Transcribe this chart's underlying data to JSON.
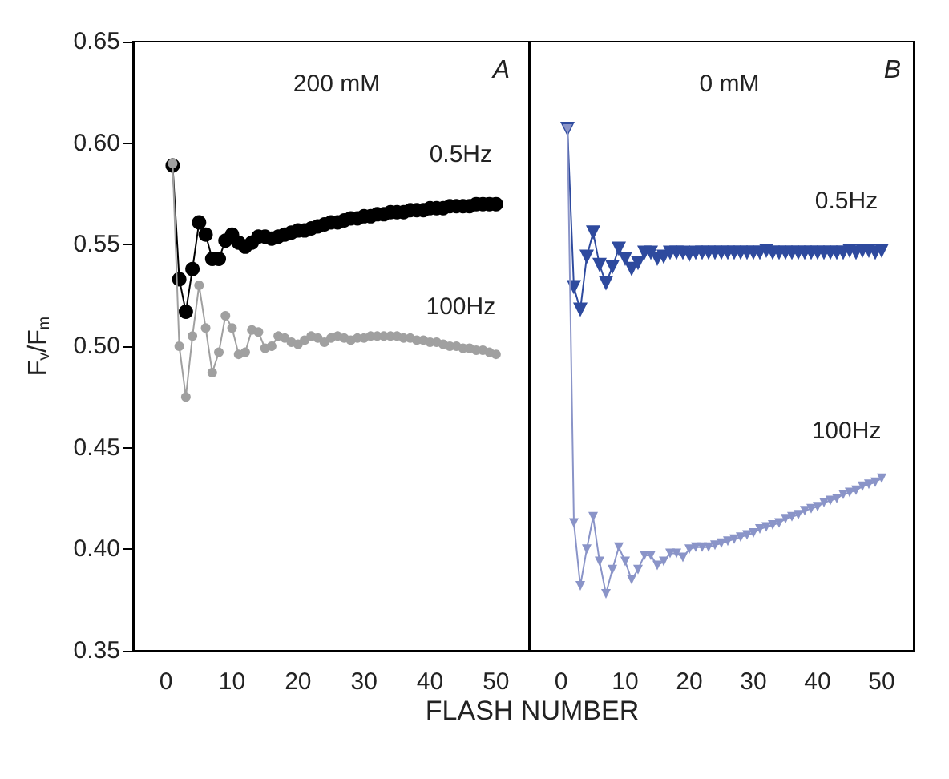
{
  "chart_data": [
    {
      "type": "line",
      "title": "200 mM",
      "annotations": [
        "A"
      ],
      "xlabel": "FLASH NUMBER",
      "ylabel": "F$_{v}$/F$_{m}$",
      "marker": "circle",
      "grid": false,
      "legend": false,
      "x": [
        1,
        2,
        3,
        4,
        5,
        6,
        7,
        8,
        9,
        10,
        11,
        12,
        13,
        14,
        15,
        16,
        17,
        18,
        19,
        20,
        21,
        22,
        23,
        24,
        25,
        26,
        27,
        28,
        29,
        30,
        31,
        32,
        33,
        34,
        35,
        36,
        37,
        38,
        39,
        40,
        41,
        42,
        43,
        44,
        45,
        46,
        47,
        48,
        49,
        50
      ],
      "xlim": [
        -5,
        55
      ],
      "xticks": [
        0,
        10,
        20,
        30,
        40,
        50
      ],
      "ylim": [
        0.35,
        0.65
      ],
      "yticks": [
        0.35,
        {
          "value": 0.4,
          "label": "0.40"
        },
        0.45,
        {
          "value": 0.5,
          "label": "0.50"
        },
        0.55,
        {
          "value": 0.6,
          "label": "0.60"
        },
        0.65
      ],
      "series": [
        {
          "name": "0.5Hz",
          "color": "#000000",
          "values": [
            0.589,
            0.533,
            0.517,
            0.538,
            0.561,
            0.555,
            0.543,
            0.543,
            0.552,
            0.555,
            0.551,
            0.549,
            0.551,
            0.554,
            0.554,
            0.553,
            0.554,
            0.555,
            0.556,
            0.557,
            0.557,
            0.558,
            0.559,
            0.56,
            0.561,
            0.561,
            0.562,
            0.563,
            0.563,
            0.564,
            0.564,
            0.565,
            0.565,
            0.566,
            0.566,
            0.566,
            0.567,
            0.567,
            0.567,
            0.568,
            0.568,
            0.568,
            0.569,
            0.569,
            0.569,
            0.569,
            0.57,
            0.57,
            0.57,
            0.57
          ]
        },
        {
          "name": "100Hz",
          "color": "#a0a0a0",
          "values": [
            0.59,
            0.5,
            0.475,
            0.505,
            0.53,
            0.509,
            0.487,
            0.497,
            0.515,
            0.509,
            0.496,
            0.497,
            0.508,
            0.507,
            0.499,
            0.5,
            0.505,
            0.504,
            0.502,
            0.501,
            0.503,
            0.505,
            0.504,
            0.502,
            0.504,
            0.505,
            0.504,
            0.503,
            0.504,
            0.504,
            0.505,
            0.505,
            0.505,
            0.505,
            0.505,
            0.504,
            0.504,
            0.503,
            0.503,
            0.502,
            0.502,
            0.501,
            0.5,
            0.5,
            0.499,
            0.499,
            0.498,
            0.498,
            0.497,
            0.496
          ]
        }
      ]
    },
    {
      "type": "line",
      "title": "0 mM",
      "annotations": [
        "B"
      ],
      "marker": "triangle",
      "grid": false,
      "legend": false,
      "tick_labels": "x",
      "x": [
        1,
        2,
        3,
        4,
        5,
        6,
        7,
        8,
        9,
        10,
        11,
        12,
        13,
        14,
        15,
        16,
        17,
        18,
        19,
        20,
        21,
        22,
        23,
        24,
        25,
        26,
        27,
        28,
        29,
        30,
        31,
        32,
        33,
        34,
        35,
        36,
        37,
        38,
        39,
        40,
        41,
        42,
        43,
        44,
        45,
        46,
        47,
        48,
        49,
        50
      ],
      "xlim": [
        -5,
        55
      ],
      "xticks": [
        0,
        10,
        20,
        30,
        40,
        50
      ],
      "ylim": [
        0.35,
        0.65
      ],
      "yticks": [
        0.35,
        0.4,
        0.45,
        0.5,
        0.55,
        0.6,
        0.65
      ],
      "series": [
        {
          "name": "0.5Hz",
          "color": "#2e4a9e",
          "values": [
            0.607,
            0.529,
            0.518,
            0.544,
            0.556,
            0.54,
            0.531,
            0.539,
            0.548,
            0.543,
            0.538,
            0.541,
            0.546,
            0.546,
            0.543,
            0.544,
            0.546,
            0.546,
            0.546,
            0.545,
            0.546,
            0.546,
            0.546,
            0.546,
            0.546,
            0.546,
            0.546,
            0.546,
            0.546,
            0.546,
            0.546,
            0.547,
            0.546,
            0.546,
            0.546,
            0.546,
            0.546,
            0.546,
            0.546,
            0.546,
            0.546,
            0.546,
            0.546,
            0.546,
            0.547,
            0.546,
            0.547,
            0.547,
            0.546,
            0.547
          ]
        },
        {
          "name": "100Hz",
          "color": "#8a94c8",
          "values": [
            0.607,
            0.413,
            0.382,
            0.4,
            0.416,
            0.394,
            0.378,
            0.39,
            0.401,
            0.394,
            0.385,
            0.39,
            0.397,
            0.397,
            0.392,
            0.394,
            0.398,
            0.398,
            0.396,
            0.4,
            0.401,
            0.401,
            0.401,
            0.402,
            0.403,
            0.404,
            0.405,
            0.406,
            0.407,
            0.408,
            0.41,
            0.411,
            0.412,
            0.413,
            0.415,
            0.416,
            0.417,
            0.419,
            0.42,
            0.421,
            0.423,
            0.424,
            0.425,
            0.427,
            0.428,
            0.429,
            0.431,
            0.432,
            0.433,
            0.435
          ]
        }
      ]
    }
  ]
}
